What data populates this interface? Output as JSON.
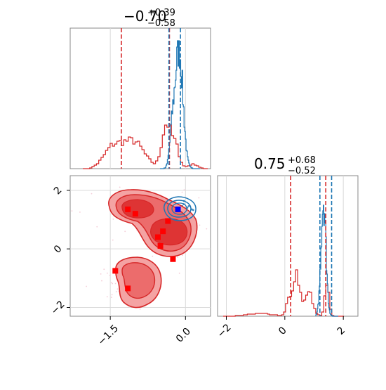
{
  "chart_data": [
    {
      "type": "histogram",
      "panel": "x-marginal",
      "title_main": "−0.70",
      "title_sup": "+0.39",
      "title_sub": "−0.58",
      "xlim": [
        -2.3,
        0.5
      ],
      "series": [
        {
          "name": "",
          "color": "#d62728",
          "dashed_lines_x": [
            -1.28,
            -0.32
          ]
        },
        {
          "name": "",
          "color": "#1f77b4",
          "dashed_lines_x": [
            -0.33,
            -0.1
          ]
        }
      ],
      "grid": true
    },
    {
      "type": "scatter",
      "panel": "joint",
      "xlim": [
        -2.3,
        0.5
      ],
      "ylim": [
        -2.3,
        2.5
      ],
      "x_ticks": [
        "−1.5",
        "0.0"
      ],
      "y_ticks": [
        "2",
        "0",
        "−2"
      ],
      "x_tick_values": [
        -1.5,
        0.0
      ],
      "y_tick_values": [
        2,
        0,
        -2
      ],
      "red_points": [
        {
          "x": -1.15,
          "y": 1.35
        },
        {
          "x": -1.0,
          "y": 1.2
        },
        {
          "x": -0.35,
          "y": 0.95
        },
        {
          "x": -0.45,
          "y": 0.6
        },
        {
          "x": -0.55,
          "y": 0.4
        },
        {
          "x": -0.5,
          "y": 0.1
        },
        {
          "x": -0.25,
          "y": -0.35
        },
        {
          "x": -1.4,
          "y": -0.75
        },
        {
          "x": -1.15,
          "y": -1.35
        }
      ],
      "blue_point": {
        "x": -0.15,
        "y": 1.35
      },
      "grid": true
    },
    {
      "type": "histogram",
      "panel": "y-marginal",
      "title_main": "0.75",
      "title_sup": "+0.68",
      "title_sub": "−0.52",
      "xlim": [
        -2.3,
        2.5
      ],
      "x_ticks": [
        "−2",
        "0",
        "2"
      ],
      "x_tick_values": [
        -2,
        0,
        2
      ],
      "series": [
        {
          "name": "",
          "color": "#d62728",
          "dashed_lines_x": [
            0.2,
            1.4
          ]
        },
        {
          "name": "",
          "color": "#1f77b4",
          "dashed_lines_x": [
            1.2,
            1.6
          ]
        }
      ],
      "grid": true
    }
  ],
  "colors": {
    "red": "#d62728",
    "red_fill_light": "#f4a3a3",
    "red_fill_mid": "#ec6c6c",
    "red_fill_dark": "#de3434",
    "blue": "#1f77b4",
    "point_blue": "#0000ff",
    "grid": "#d9d9d9",
    "frame": "#888888"
  }
}
